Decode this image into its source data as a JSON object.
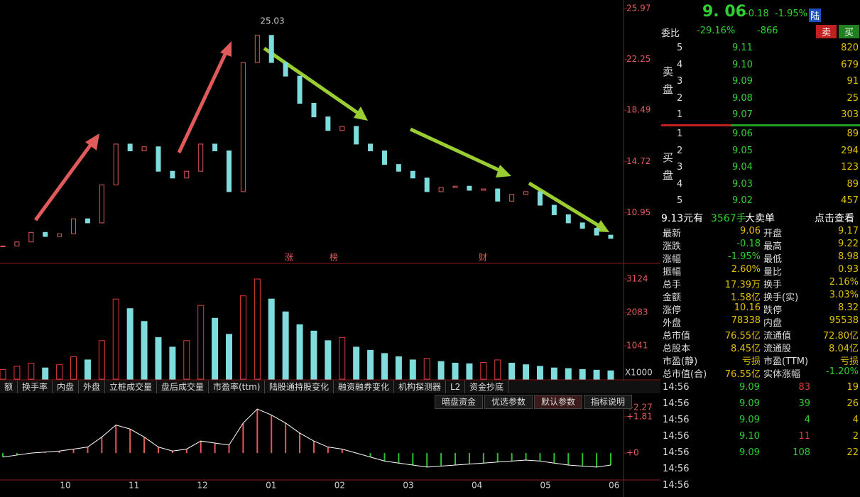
{
  "chart_data": [
    {
      "type": "line",
      "name": "price",
      "max_label": "25.03",
      "values": [
        8.5,
        8.8,
        9.5,
        9.2,
        9.4,
        10.5,
        10.2,
        13,
        16,
        15.5,
        15.8,
        14,
        13.5,
        14,
        16,
        15.5,
        12.5,
        22,
        24,
        22,
        21,
        19,
        18,
        17,
        17.3,
        16,
        15.5,
        14.5,
        14,
        13.5,
        12.5,
        12.8,
        12.9,
        12.6,
        12.7,
        11.8,
        12.3,
        12.5,
        11.5,
        10.8,
        10.2,
        9.8,
        9.3,
        9.06
      ],
      "ylim": [
        7.27,
        26.34
      ],
      "yticks": [
        10.95,
        14.72,
        18.49,
        22.25,
        25.97
      ],
      "x_labels": [
        "10",
        "11",
        "12",
        "01",
        "02",
        "03",
        "04",
        "05",
        "06"
      ],
      "event_labels": [
        "涨",
        "榜",
        "财"
      ]
    },
    {
      "type": "bar",
      "name": "volume",
      "unit_label": "X1000",
      "values": [
        300,
        400,
        500,
        350,
        450,
        700,
        600,
        1200,
        2500,
        2200,
        1800,
        1300,
        1000,
        1200,
        2300,
        1900,
        1400,
        2600,
        3124,
        2500,
        2100,
        1700,
        1500,
        1200,
        1300,
        1000,
        900,
        800,
        700,
        600,
        650,
        550,
        500,
        480,
        520,
        600,
        500,
        450,
        400,
        350,
        330,
        300,
        280,
        260
      ],
      "ylim": [
        0,
        3523
      ],
      "yticks": [
        1041,
        2083,
        3124
      ],
      "colors": [
        "#e03c3c",
        "#7fdcdc"
      ]
    },
    {
      "type": "line",
      "name": "macd",
      "values": [
        -0.2,
        -0.1,
        0,
        0.05,
        0.1,
        0.2,
        0.3,
        0.8,
        1.4,
        1.2,
        0.8,
        0.3,
        0.1,
        0.2,
        0.6,
        0.5,
        0.4,
        1.5,
        2.2,
        1.9,
        1.5,
        1.0,
        0.6,
        0.3,
        0.2,
        0,
        -0.2,
        -0.4,
        -0.5,
        -0.6,
        -0.7,
        -0.65,
        -0.6,
        -0.55,
        -0.5,
        -0.45,
        -0.4,
        -0.35,
        -0.4,
        -0.5,
        -0.6,
        -0.65,
        -0.7,
        -0.6
      ],
      "ylim": [
        -1.84,
        2.77
      ],
      "yticks": [
        {
          "value": 0,
          "label": "+0"
        },
        {
          "value": 1.81,
          "label": "+1.81"
        },
        {
          "value": 2.27,
          "label": "+2.27"
        }
      ]
    }
  ],
  "tabs": [
    "额",
    "换手率",
    "内盘",
    "外盘",
    "立桩成交量",
    "盘后成交量",
    "市盈率(ttm)",
    "陆股通持股变化",
    "融资融券变化",
    "机构探测器",
    "L2",
    "资金抄底"
  ],
  "buttons": [
    "暗盘资金",
    "优选参数",
    "默认参数",
    "指标说明"
  ],
  "quote": {
    "price": "9. 06",
    "change": "-0.18",
    "pct": "-1.95%",
    "badge": "陆"
  },
  "weibi": {
    "label": "委比",
    "pct": "-29.16%",
    "diff": "-866",
    "sell": "卖",
    "buy": "买"
  },
  "sell_label": [
    "卖",
    "盘"
  ],
  "buy_label": [
    "买",
    "盘"
  ],
  "sell_rows": [
    [
      "5",
      "9.11",
      "820"
    ],
    [
      "4",
      "9.10",
      "679"
    ],
    [
      "3",
      "9.09",
      "91"
    ],
    [
      "2",
      "9.08",
      "25"
    ],
    [
      "1",
      "9.07",
      "303"
    ]
  ],
  "buy_rows": [
    [
      "1",
      "9.06",
      "89"
    ],
    [
      "2",
      "9.05",
      "294"
    ],
    [
      "3",
      "9.04",
      "123"
    ],
    [
      "4",
      "9.03",
      "89"
    ],
    [
      "5",
      "9.02",
      "457"
    ]
  ],
  "summary": [
    "9.13元有",
    "3567手",
    "大卖单",
    "点击查看"
  ],
  "stats": [
    [
      "最新",
      "9.06",
      "开盘",
      "9.17"
    ],
    [
      "涨跌",
      "-0.18",
      "最高",
      "9.22"
    ],
    [
      "涨幅",
      "-1.95%",
      "最低",
      "8.98"
    ],
    [
      "振幅",
      "2.60%",
      "量比",
      "0.93"
    ],
    [
      "总手",
      "17.39万",
      "换手",
      "2.16%"
    ],
    [
      "金额",
      "1.58亿",
      "换手(实)",
      "3.03%"
    ],
    [
      "涨停",
      "10.16",
      "跌停",
      "8.32"
    ],
    [
      "外盘",
      "78338",
      "内盘",
      "95538"
    ],
    [
      "总市值",
      "76.55亿",
      "流通值",
      "72.80亿"
    ],
    [
      "总股本",
      "8.45亿",
      "流通股",
      "8.04亿"
    ],
    [
      "市盈(静)",
      "亏损",
      "市盈(TTM)",
      "亏损"
    ],
    [
      "总市值(合)",
      "76.55亿",
      "实体涨幅",
      "-1.20%"
    ]
  ],
  "trades": [
    [
      "14:56",
      "9.09",
      "83",
      "19"
    ],
    [
      "14:56",
      "9.09",
      "39",
      "26"
    ],
    [
      "14:56",
      "9.09",
      "4",
      "4"
    ],
    [
      "14:56",
      "9.10",
      "11",
      "2"
    ],
    [
      "14:56",
      "9.09",
      "108",
      "22"
    ],
    [
      "14:56",
      "",
      "",
      " "
    ],
    [
      "14:56",
      "",
      "",
      ""
    ]
  ]
}
